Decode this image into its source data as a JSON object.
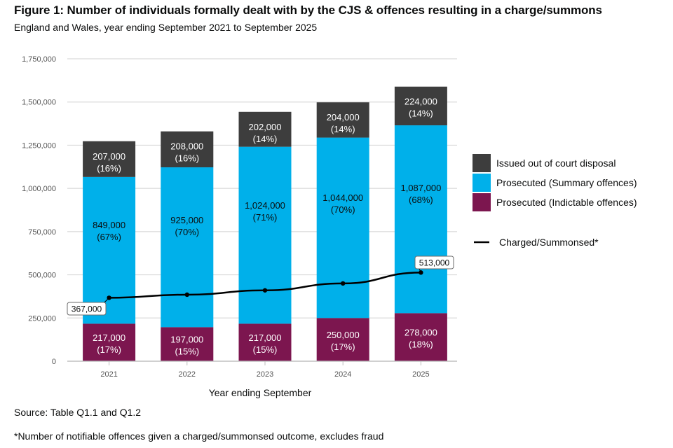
{
  "header": {
    "title": "Figure 1: Number of individuals formally dealt with by the CJS & offences resulting in a charge/summons",
    "subtitle": "England and Wales, year ending September 2021 to September 2025"
  },
  "footer": {
    "source": "Source: Table Q1.1 and Q1.2",
    "footnote": "*Number of notifiable offences given a charged/summonsed outcome, excludes fraud"
  },
  "chart_data": {
    "type": "bar",
    "stacked": true,
    "title": "Figure 1: Number of individuals formally dealt with by the CJS & offences resulting in a charge/summons",
    "subtitle": "England and Wales, year ending September 2021 to September 2025",
    "xlabel": "Year ending September",
    "ylabel": "",
    "ylim": [
      0,
      1750000
    ],
    "yticks": [
      0,
      250000,
      500000,
      750000,
      1000000,
      1250000,
      1500000,
      1750000
    ],
    "ytick_labels": [
      "0",
      "250,000",
      "500,000",
      "750,000",
      "1,000,000",
      "1,250,000",
      "1,500,000",
      "1,750,000"
    ],
    "grid": true,
    "legend_position": "right",
    "categories": [
      "2021",
      "2022",
      "2023",
      "2024",
      "2025"
    ],
    "series": [
      {
        "name": "Prosecuted (Indictable offences)",
        "color": "#7c164f",
        "text_color": "#ffffff",
        "values": [
          217000,
          197000,
          217000,
          250000,
          278000
        ],
        "labels": [
          "217,000",
          "197,000",
          "217,000",
          "250,000",
          "278,000"
        ],
        "percent_labels": [
          "(17%)",
          "(15%)",
          "(15%)",
          "(17%)",
          "(18%)"
        ]
      },
      {
        "name": "Prosecuted (Summary offences)",
        "color": "#00b0ea",
        "text_color": "#0b0c0c",
        "values": [
          849000,
          925000,
          1024000,
          1044000,
          1087000
        ],
        "labels": [
          "849,000",
          "925,000",
          "1,024,000",
          "1,044,000",
          "1,087,000"
        ],
        "percent_labels": [
          "(67%)",
          "(70%)",
          "(71%)",
          "(70%)",
          "(68%)"
        ]
      },
      {
        "name": "Issued out of court disposal",
        "color": "#3d3d3d",
        "text_color": "#ffffff",
        "values": [
          207000,
          208000,
          202000,
          204000,
          224000
        ],
        "labels": [
          "207,000",
          "208,000",
          "202,000",
          "204,000",
          "224,000"
        ],
        "percent_labels": [
          "(16%)",
          "(16%)",
          "(14%)",
          "(14%)",
          "(14%)"
        ]
      }
    ],
    "line_series": {
      "name": "Charged/Summonsed*",
      "color": "#000000",
      "type": "line",
      "values": [
        367000,
        385000,
        410000,
        450000,
        513000
      ],
      "callouts": [
        {
          "index": 0,
          "label": "367,000"
        },
        {
          "index": 4,
          "label": "513,000"
        }
      ]
    },
    "legend": [
      {
        "label": "Issued out of court disposal",
        "kind": "box",
        "color": "#3d3d3d"
      },
      {
        "label": "Prosecuted (Summary offences)",
        "kind": "box",
        "color": "#00b0ea"
      },
      {
        "label": "Prosecuted (Indictable offences)",
        "kind": "box",
        "color": "#7c164f"
      },
      {
        "label": "Charged/Summonsed*",
        "kind": "line",
        "color": "#000000"
      }
    ]
  }
}
